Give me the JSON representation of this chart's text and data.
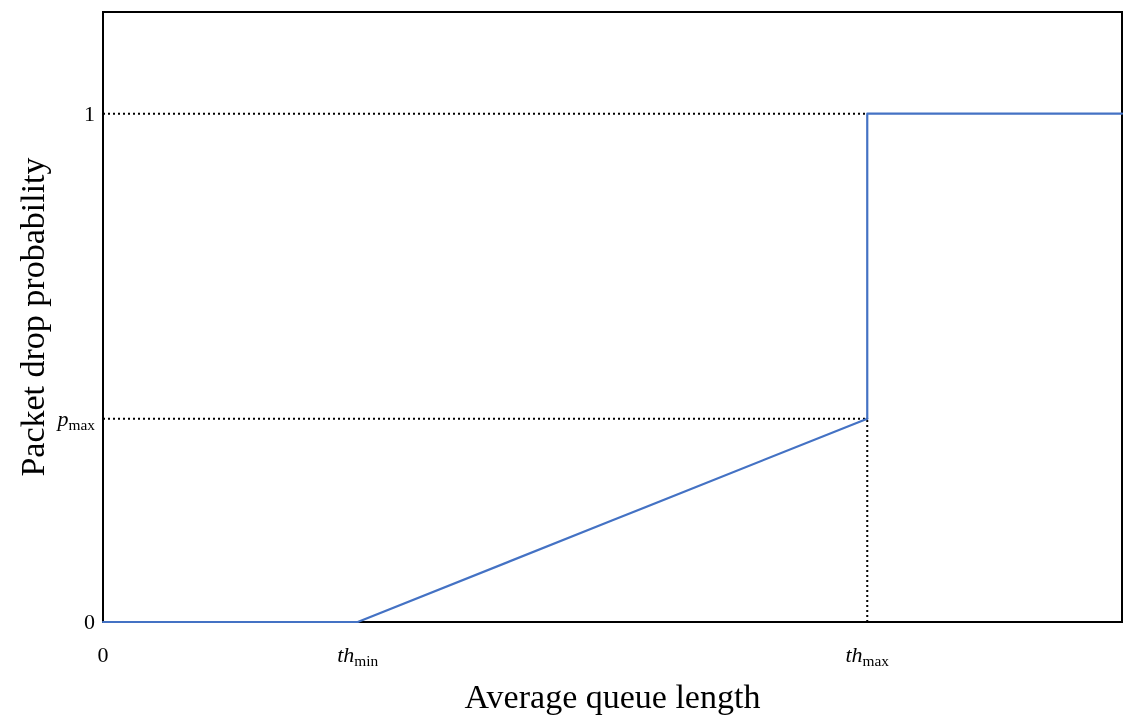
{
  "chart_data": {
    "type": "line",
    "xlabel": "Average queue length",
    "ylabel": "Packet drop probability",
    "categories": [
      "0",
      "th$_{min}$",
      null,
      "th$_{max}$",
      null
    ],
    "ylim": [
      0,
      1.2
    ],
    "yticks": [
      0,
      {
        "value": 0.4,
        "label": "p$_{max}$"
      },
      1
    ],
    "series": [
      {
        "values": [
          0,
          0,
          0.2,
          0.4,
          null
        ],
        "color": "#4472c4"
      },
      {
        "type": "step",
        "values": [
          null,
          null,
          null,
          0.4,
          1
        ],
        "color": "#4472c4"
      }
    ],
    "ref_lines": [
      {
        "axis": "y",
        "value": 1,
        "color": "#000000",
        "line_style": "dotted"
      },
      {
        "axis": "y",
        "value": 0.4,
        "color": "#000000",
        "line_style": "dotted"
      },
      {
        "axis": "x",
        "value": "th$_{max}$",
        "color": "#000000",
        "line_style": "dotted"
      }
    ],
    "marker": "none",
    "line_style": "solid"
  }
}
